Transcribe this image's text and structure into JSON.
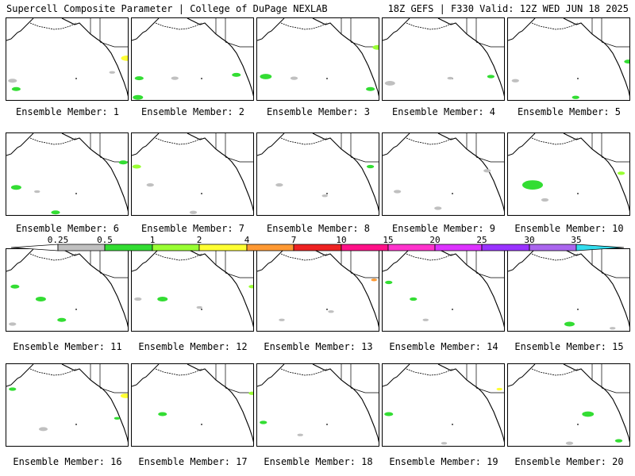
{
  "header": {
    "left": "Supercell Composite Parameter | College of DuPage NEXLAB",
    "right": "18Z GEFS | F330 Valid: 12Z WED JUN 18 2025"
  },
  "colorbar": {
    "levels": [
      "0.25",
      "0.5",
      "1",
      "2",
      "4",
      "7",
      "10",
      "15",
      "20",
      "25",
      "30",
      "35"
    ],
    "colors": [
      "#ffffff",
      "#c0c0c0",
      "#33dd33",
      "#99ff33",
      "#ffff33",
      "#ff9933",
      "#ee2222",
      "#ff1188",
      "#ff33cc",
      "#dd33ff",
      "#9933ff",
      "#aa66ee",
      "#33ddee"
    ]
  },
  "members": [
    {
      "label": "Ensemble Member: 1",
      "blobs": [
        [
          "#c0c0c0",
          0.05,
          0.75,
          0.06
        ],
        [
          "#33dd33",
          0.08,
          0.85,
          0.06
        ],
        [
          "#ffff33",
          0.98,
          0.48,
          0.08
        ],
        [
          "#c0c0c0",
          0.86,
          0.65,
          0.04
        ]
      ]
    },
    {
      "label": "Ensemble Member: 2",
      "blobs": [
        [
          "#33dd33",
          0.06,
          0.72,
          0.06
        ],
        [
          "#33dd33",
          0.05,
          0.95,
          0.07
        ],
        [
          "#33dd33",
          0.85,
          0.68,
          0.06
        ],
        [
          "#c0c0c0",
          0.35,
          0.72,
          0.05
        ]
      ]
    },
    {
      "label": "Ensemble Member: 3",
      "blobs": [
        [
          "#33dd33",
          0.07,
          0.7,
          0.08
        ],
        [
          "#c0c0c0",
          0.3,
          0.72,
          0.05
        ],
        [
          "#33dd33",
          0.92,
          0.85,
          0.06
        ],
        [
          "#99ff33",
          0.98,
          0.35,
          0.07
        ]
      ]
    },
    {
      "label": "Ensemble Member: 4",
      "blobs": [
        [
          "#c0c0c0",
          0.06,
          0.78,
          0.07
        ],
        [
          "#33dd33",
          0.88,
          0.7,
          0.05
        ],
        [
          "#c0c0c0",
          0.55,
          0.72,
          0.04
        ]
      ]
    },
    {
      "label": "Ensemble Member: 5",
      "blobs": [
        [
          "#c0c0c0",
          0.06,
          0.75,
          0.05
        ],
        [
          "#33dd33",
          0.55,
          0.95,
          0.05
        ],
        [
          "#33dd33",
          0.98,
          0.52,
          0.06
        ]
      ]
    },
    {
      "label": "Ensemble Member: 6",
      "blobs": [
        [
          "#33dd33",
          0.08,
          0.65,
          0.07
        ],
        [
          "#33dd33",
          0.4,
          0.95,
          0.06
        ],
        [
          "#c0c0c0",
          0.25,
          0.7,
          0.04
        ],
        [
          "#33dd33",
          0.95,
          0.35,
          0.06
        ]
      ]
    },
    {
      "label": "Ensemble Member: 7",
      "blobs": [
        [
          "#99ff33",
          0.04,
          0.4,
          0.06
        ],
        [
          "#c0c0c0",
          0.15,
          0.62,
          0.05
        ],
        [
          "#c0c0c0",
          0.5,
          0.95,
          0.05
        ]
      ]
    },
    {
      "label": "Ensemble Member: 8",
      "blobs": [
        [
          "#c0c0c0",
          0.18,
          0.62,
          0.05
        ],
        [
          "#c0c0c0",
          0.55,
          0.75,
          0.04
        ],
        [
          "#33dd33",
          0.92,
          0.4,
          0.05
        ]
      ]
    },
    {
      "label": "Ensemble Member: 9",
      "blobs": [
        [
          "#c0c0c0",
          0.12,
          0.7,
          0.05
        ],
        [
          "#c0c0c0",
          0.45,
          0.9,
          0.05
        ],
        [
          "#c0c0c0",
          0.85,
          0.45,
          0.05
        ]
      ]
    },
    {
      "label": "Ensemble Member: 10",
      "blobs": [
        [
          "#33dd33",
          0.2,
          0.62,
          0.14
        ],
        [
          "#c0c0c0",
          0.3,
          0.8,
          0.05
        ],
        [
          "#99ff33",
          0.92,
          0.48,
          0.05
        ]
      ]
    },
    {
      "label": "Ensemble Member: 11",
      "blobs": [
        [
          "#33dd33",
          0.07,
          0.45,
          0.06
        ],
        [
          "#33dd33",
          0.28,
          0.6,
          0.07
        ],
        [
          "#33dd33",
          0.45,
          0.85,
          0.06
        ],
        [
          "#c0c0c0",
          0.05,
          0.9,
          0.05
        ]
      ]
    },
    {
      "label": "Ensemble Member: 12",
      "blobs": [
        [
          "#33dd33",
          0.25,
          0.6,
          0.07
        ],
        [
          "#c0c0c0",
          0.05,
          0.6,
          0.05
        ],
        [
          "#c0c0c0",
          0.55,
          0.7,
          0.04
        ],
        [
          "#99ff33",
          0.98,
          0.45,
          0.05
        ]
      ]
    },
    {
      "label": "Ensemble Member: 13",
      "blobs": [
        [
          "#c0c0c0",
          0.2,
          0.85,
          0.04
        ],
        [
          "#ff9933",
          0.95,
          0.37,
          0.04
        ],
        [
          "#c0c0c0",
          0.6,
          0.75,
          0.04
        ]
      ]
    },
    {
      "label": "Ensemble Member: 14",
      "blobs": [
        [
          "#33dd33",
          0.05,
          0.4,
          0.05
        ],
        [
          "#33dd33",
          0.25,
          0.6,
          0.05
        ],
        [
          "#c0c0c0",
          0.35,
          0.85,
          0.04
        ]
      ]
    },
    {
      "label": "Ensemble Member: 15",
      "blobs": [
        [
          "#33dd33",
          0.5,
          0.9,
          0.07
        ],
        [
          "#c0c0c0",
          0.85,
          0.95,
          0.04
        ]
      ]
    },
    {
      "label": "Ensemble Member: 16",
      "blobs": [
        [
          "#ffff33",
          0.97,
          0.38,
          0.07
        ],
        [
          "#c0c0c0",
          0.3,
          0.78,
          0.06
        ],
        [
          "#33dd33",
          0.05,
          0.3,
          0.05
        ],
        [
          "#33dd33",
          0.9,
          0.65,
          0.04
        ]
      ]
    },
    {
      "label": "Ensemble Member: 17",
      "blobs": [
        [
          "#33dd33",
          0.25,
          0.6,
          0.06
        ],
        [
          "#99ff33",
          0.98,
          0.35,
          0.05
        ]
      ]
    },
    {
      "label": "Ensemble Member: 18",
      "blobs": [
        [
          "#c0c0c0",
          0.35,
          0.85,
          0.04
        ],
        [
          "#33dd33",
          0.05,
          0.7,
          0.05
        ]
      ]
    },
    {
      "label": "Ensemble Member: 19",
      "blobs": [
        [
          "#33dd33",
          0.05,
          0.6,
          0.06
        ],
        [
          "#ffff33",
          0.95,
          0.3,
          0.04
        ],
        [
          "#c0c0c0",
          0.5,
          0.95,
          0.04
        ]
      ]
    },
    {
      "label": "Ensemble Member: 20",
      "blobs": [
        [
          "#33dd33",
          0.65,
          0.6,
          0.08
        ],
        [
          "#33dd33",
          0.9,
          0.92,
          0.05
        ],
        [
          "#c0c0c0",
          0.5,
          0.95,
          0.05
        ]
      ]
    }
  ]
}
